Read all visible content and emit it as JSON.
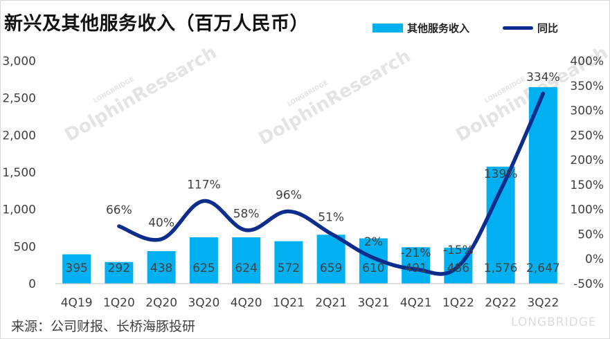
{
  "title": "新兴及其他服务收入（百万人民币）",
  "source": "来源：公司财报、长桥海豚投研",
  "watermark": {
    "main": "DolphinResearch",
    "small": "LONGBRIDGE",
    "brand": "LONGBRIDGE"
  },
  "colors": {
    "bar": "#00b0f0",
    "line": "#0d2d8c",
    "text": "#404040"
  },
  "chart_data": {
    "type": "bar",
    "categories": [
      "4Q19",
      "1Q20",
      "2Q20",
      "3Q20",
      "4Q20",
      "1Q21",
      "2Q21",
      "3Q21",
      "4Q21",
      "1Q22",
      "2Q22",
      "3Q22"
    ],
    "series": [
      {
        "name": "其他服务收入",
        "type": "bar",
        "axis": "left",
        "values": [
          395,
          292,
          438,
          625,
          624,
          572,
          659,
          610,
          491,
          486,
          1576,
          2647
        ],
        "labels": [
          "395",
          "292",
          "438",
          "625",
          "624",
          "572",
          "659",
          "610",
          "491",
          "486",
          "1,576",
          "2,647"
        ]
      },
      {
        "name": "同比",
        "type": "line",
        "axis": "right",
        "values": [
          null,
          66,
          40,
          117,
          58,
          96,
          51,
          2,
          -21,
          -15,
          139,
          334
        ],
        "labels": [
          "",
          "66%",
          "40%",
          "117%",
          "58%",
          "96%",
          "51%",
          "2%",
          "-21%",
          "-15%",
          "139%",
          "334%"
        ]
      }
    ],
    "y_left": {
      "min": 0,
      "max": 3000,
      "ticks": [
        "0",
        "500",
        "1,000",
        "1,500",
        "2,000",
        "2,500",
        "3,000"
      ]
    },
    "y_right": {
      "min": -50,
      "max": 400,
      "ticks": [
        "-50%",
        "0%",
        "50%",
        "100%",
        "150%",
        "200%",
        "250%",
        "300%",
        "350%",
        "400%"
      ]
    },
    "grid": false,
    "legend_position": "top-right"
  }
}
